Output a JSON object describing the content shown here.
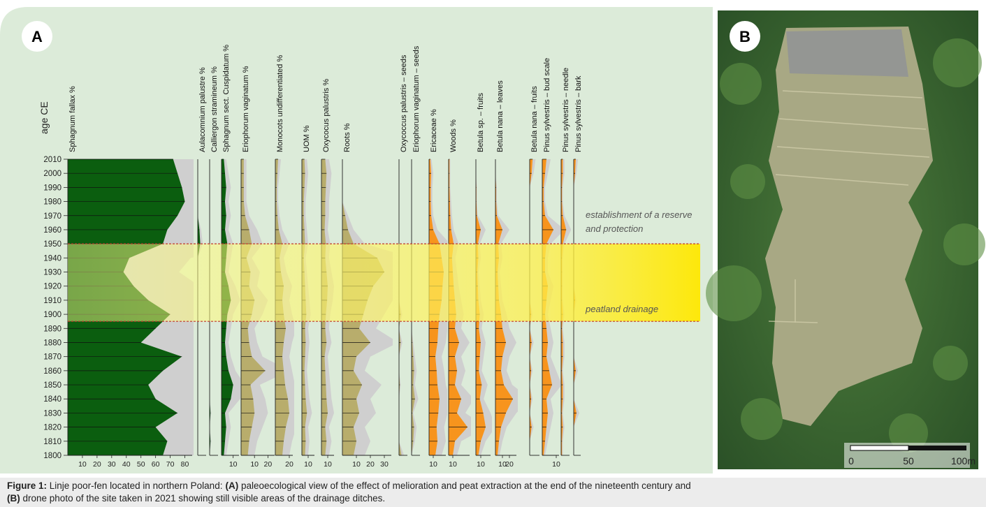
{
  "chart_data": {
    "type": "stratigraphic",
    "panel_label": "A",
    "y_label": "age CE",
    "ylim": [
      1800,
      2010
    ],
    "yticks": [
      1800,
      1810,
      1820,
      1830,
      1840,
      1850,
      1860,
      1870,
      1880,
      1890,
      1900,
      1910,
      1920,
      1930,
      1940,
      1950,
      1960,
      1970,
      1980,
      1990,
      2000,
      2010
    ],
    "x": [
      1800,
      1810,
      1820,
      1830,
      1840,
      1850,
      1860,
      1870,
      1880,
      1890,
      1900,
      1910,
      1920,
      1930,
      1940,
      1950,
      1960,
      1970,
      1980,
      1990,
      2000,
      2010
    ],
    "exaggeration": 2,
    "drainage": {
      "from": 1895,
      "to": 1950
    },
    "annotations": {
      "reserve": [
        "establishment of a reserve",
        "and protection"
      ],
      "drainage": "peatland drainage"
    },
    "series": [
      {
        "name": "Sphagnum fallax %",
        "color": "#0b5e0f",
        "xlim": [
          0,
          85
        ],
        "xticks": [
          10,
          20,
          30,
          40,
          50,
          60,
          70,
          80
        ],
        "values": [
          65,
          68,
          60,
          75,
          60,
          55,
          65,
          78,
          50,
          60,
          70,
          55,
          45,
          38,
          42,
          65,
          68,
          75,
          80,
          78,
          75,
          72
        ]
      },
      {
        "name": "Aulacomnium palustre %",
        "color": "#0b5e0f",
        "xlim": [
          0,
          10
        ],
        "xticks": [],
        "values": [
          0,
          0,
          0,
          0,
          0,
          0,
          0,
          0,
          0,
          0,
          0,
          0,
          0,
          0,
          0,
          3,
          2,
          0,
          0,
          0,
          0,
          0
        ]
      },
      {
        "name": "Calliergon stramineum %",
        "color": "#0b5e0f",
        "xlim": [
          0,
          10
        ],
        "xticks": [],
        "values": [
          0,
          1,
          0,
          1,
          0,
          0,
          0,
          0,
          0,
          0,
          0,
          0,
          0,
          0,
          0,
          0,
          0,
          0,
          0,
          0,
          0,
          0
        ]
      },
      {
        "name": "Sphagnum sect. Cuspidatum %",
        "color": "#0b5e0f",
        "xlim": [
          0,
          15
        ],
        "xticks": [
          10
        ],
        "values": [
          2,
          3,
          4,
          3,
          8,
          10,
          6,
          4,
          3,
          4,
          5,
          8,
          6,
          3,
          4,
          5,
          3,
          4,
          3,
          4,
          3,
          2
        ]
      },
      {
        "name": "Eriophorum vaginatum %",
        "color": "#b8ad6c",
        "xlim": [
          0,
          25
        ],
        "xticks": [
          10,
          20
        ],
        "values": [
          5,
          6,
          8,
          10,
          9,
          7,
          18,
          8,
          6,
          5,
          8,
          10,
          6,
          7,
          4,
          8,
          6,
          3,
          2,
          2,
          2,
          2
        ]
      },
      {
        "name": "Monocots undifferentiated %",
        "color": "#b8ad6c",
        "xlim": [
          0,
          25
        ],
        "xticks": [
          20
        ],
        "values": [
          10,
          12,
          15,
          20,
          18,
          14,
          12,
          10,
          12,
          15,
          12,
          10,
          12,
          8,
          6,
          10,
          5,
          3,
          2,
          2,
          3,
          4
        ]
      },
      {
        "name": "UOM %",
        "color": "#b8ad6c",
        "xlim": [
          0,
          20
        ],
        "xticks": [
          10
        ],
        "values": [
          5,
          6,
          5,
          8,
          6,
          5,
          4,
          5,
          6,
          5,
          7,
          6,
          5,
          4,
          3,
          5,
          4,
          3,
          3,
          4,
          5,
          4
        ]
      },
      {
        "name": "Oxycocus palustris %",
        "color": "#b8ad6c",
        "xlim": [
          0,
          20
        ],
        "xticks": [
          10
        ],
        "values": [
          6,
          8,
          6,
          10,
          8,
          7,
          6,
          5,
          8,
          6,
          7,
          9,
          10,
          8,
          6,
          7,
          5,
          6,
          6,
          7,
          8,
          6
        ]
      },
      {
        "name": "Roots %",
        "color": "#b8ad6c",
        "xlim": [
          0,
          35
        ],
        "xticks": [
          10,
          20,
          30
        ],
        "values": [
          8,
          10,
          8,
          12,
          10,
          14,
          8,
          10,
          20,
          12,
          15,
          18,
          22,
          30,
          25,
          8,
          4,
          2,
          0,
          0,
          0,
          0
        ]
      },
      {
        "name": "Oxycoccus palustris – seeds",
        "color": "#b8ad6c",
        "xlim": [
          0,
          10
        ],
        "xticks": [],
        "values": [
          3,
          0,
          0,
          0,
          0,
          1,
          0,
          0,
          2,
          0,
          2,
          0,
          0,
          0,
          0,
          0,
          0,
          0,
          0,
          0,
          0,
          0
        ]
      },
      {
        "name": "Eriophorum vaginatum – seeds",
        "color": "#b8ad6c",
        "xlim": [
          0,
          10
        ],
        "xticks": [],
        "values": [
          0,
          2,
          3,
          1,
          4,
          2,
          3,
          2,
          1,
          0,
          0,
          0,
          0,
          0,
          0,
          0,
          0,
          0,
          0,
          0,
          0,
          0
        ]
      },
      {
        "name": "Ericaceae %",
        "color": "#f7941d",
        "xlim": [
          0,
          40
        ],
        "xticks": [
          10
        ],
        "values": [
          15,
          20,
          18,
          22,
          25,
          20,
          18,
          15,
          20,
          22,
          25,
          30,
          32,
          35,
          30,
          25,
          10,
          5,
          4,
          4,
          5,
          3
        ]
      },
      {
        "name": "Woods %",
        "color": "#f7941d",
        "xlim": [
          0,
          50
        ],
        "xticks": [
          10
        ],
        "values": [
          10,
          15,
          45,
          20,
          30,
          15,
          20,
          15,
          25,
          15,
          18,
          15,
          12,
          10,
          8,
          12,
          6,
          4,
          3,
          2,
          2,
          2
        ]
      },
      {
        "name": "Betula sp. – fruits",
        "color": "#f7941d",
        "xlim": [
          0,
          30
        ],
        "xticks": [
          10
        ],
        "values": [
          5,
          10,
          20,
          15,
          8,
          12,
          6,
          8,
          10,
          6,
          8,
          5,
          4,
          3,
          5,
          4,
          10,
          2,
          1,
          1,
          0,
          0
        ]
      },
      {
        "name": "Betula nana – leaves",
        "color": "#f7941d",
        "xlim": [
          0,
          30
        ],
        "xticks": [
          10,
          20
        ],
        "values": [
          3,
          5,
          8,
          15,
          25,
          12,
          8,
          10,
          15,
          10,
          8,
          5,
          4,
          3,
          5,
          4,
          10,
          2,
          1,
          1,
          0,
          0
        ]
      },
      {
        "name": "Betula nana – fruits",
        "color": "#f7941d",
        "xlim": [
          0,
          20
        ],
        "xticks": [],
        "values": [
          0,
          0,
          4,
          0,
          3,
          0,
          3,
          0,
          4,
          0,
          3,
          0,
          0,
          0,
          0,
          0,
          0,
          0,
          0,
          0,
          4,
          6
        ]
      },
      {
        "name": "Pinus sylvestris – bud scale",
        "color": "#f7941d",
        "xlim": [
          0,
          12
        ],
        "xticks": [
          10
        ],
        "values": [
          1,
          2,
          3,
          4,
          3,
          7,
          5,
          3,
          4,
          3,
          2,
          3,
          4,
          2,
          2,
          3,
          8,
          2,
          1,
          1,
          2,
          3
        ]
      },
      {
        "name": "Pinus sylvestris – needle",
        "color": "#f7941d",
        "xlim": [
          0,
          10
        ],
        "xticks": [],
        "values": [
          1,
          1,
          2,
          1,
          2,
          2,
          1,
          2,
          2,
          1,
          2,
          1,
          1,
          1,
          1,
          2,
          6,
          2,
          1,
          1,
          2,
          2
        ]
      },
      {
        "name": "Pinus sylvestris – bark",
        "color": "#f7941d",
        "xlim": [
          0,
          10
        ],
        "xticks": [],
        "values": [
          0,
          0,
          0,
          4,
          0,
          0,
          3,
          0,
          0,
          0,
          0,
          2,
          0,
          0,
          0,
          0,
          0,
          0,
          0,
          0,
          2,
          3
        ]
      }
    ]
  },
  "photo": {
    "panel_label": "B",
    "scale_bar": [
      "0",
      "50",
      "100m"
    ]
  },
  "caption": {
    "label": "Figure 1:",
    "intro": "Linje poor-fen located in northern Poland:",
    "a_label": "(A)",
    "a_text": "paleoecological view of the effect of melioration and peat extraction at the end of the nineteenth century and",
    "b_label": "(B)",
    "b_text": "drone photo of the site taken in 2021 showing still visible areas of the drainage ditches."
  }
}
